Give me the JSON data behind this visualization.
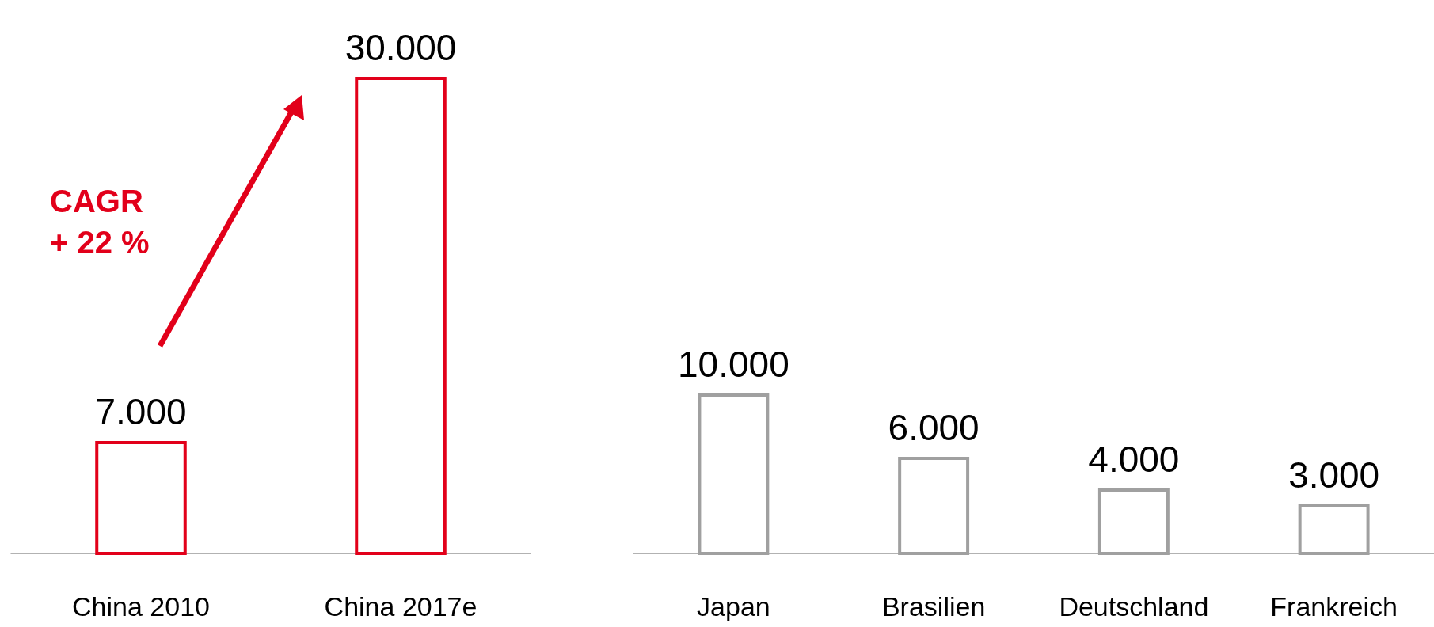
{
  "chart_data": [
    {
      "type": "bar",
      "categories": [
        "China 2010",
        "China 2017e"
      ],
      "values": [
        7000,
        30000
      ],
      "color": "#e2001a",
      "value_labels": [
        "7.000",
        "30.000"
      ],
      "annotations": [
        "CAGR\n+ 22 %"
      ]
    },
    {
      "type": "bar",
      "categories": [
        "Japan",
        "Brasilien",
        "Deutschland",
        "Frankreich"
      ],
      "values": [
        10000,
        6000,
        4000,
        3000
      ],
      "color": "#a0a0a0",
      "value_labels": [
        "10.000",
        "6.000",
        "4.000",
        "3.000"
      ]
    }
  ]
}
